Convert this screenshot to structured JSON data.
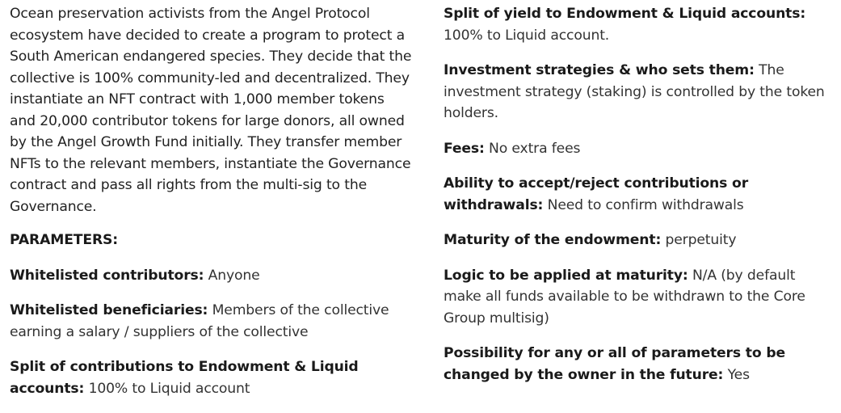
{
  "intro": "Ocean preservation activists from the Angel Protocol ecosystem have decided to create a program to protect a South American endangered species. They decide that the collective is 100% community-led and decentralized. They instantiate an NFT contract with 1,000 member tokens and 20,000 contributor tokens for large donors, all owned by the Angel Growth Fund initially. They transfer member NFTs to the relevant members, instantiate the Governance contract and pass all rights from the multi-sig to the Governance.",
  "heading": "PARAMETERS:",
  "params": [
    {
      "label": "Whitelisted contributors:",
      "value": "Anyone"
    },
    {
      "label": "Whitelisted beneficiaries:",
      "value": "Members of the collective earning a salary / suppliers of the collective"
    },
    {
      "label": "Split of contributions to Endowment & Liquid accounts:",
      "value": "100% to Liquid account"
    },
    {
      "label": "Split of yield to Endowment & Liquid accounts:",
      "value": "100% to Liquid account."
    },
    {
      "label": "Investment strategies & who sets them:",
      "value": "The investment strategy (staking) is controlled by the token holders."
    },
    {
      "label": "Fees:",
      "value": "No extra fees"
    },
    {
      "label": "Ability to accept/reject contributions or withdrawals:",
      "value": "Need to confirm withdrawals"
    },
    {
      "label": "Maturity of the endowment:",
      "value": "perpetuity"
    },
    {
      "label": "Logic to be applied at maturity:",
      "value": "N/A (by default make all funds available to be withdrawn to the Core Group multisig)"
    },
    {
      "label": "Possibility for any or all of parameters to be changed by the owner in the future:",
      "value": "Yes"
    }
  ]
}
